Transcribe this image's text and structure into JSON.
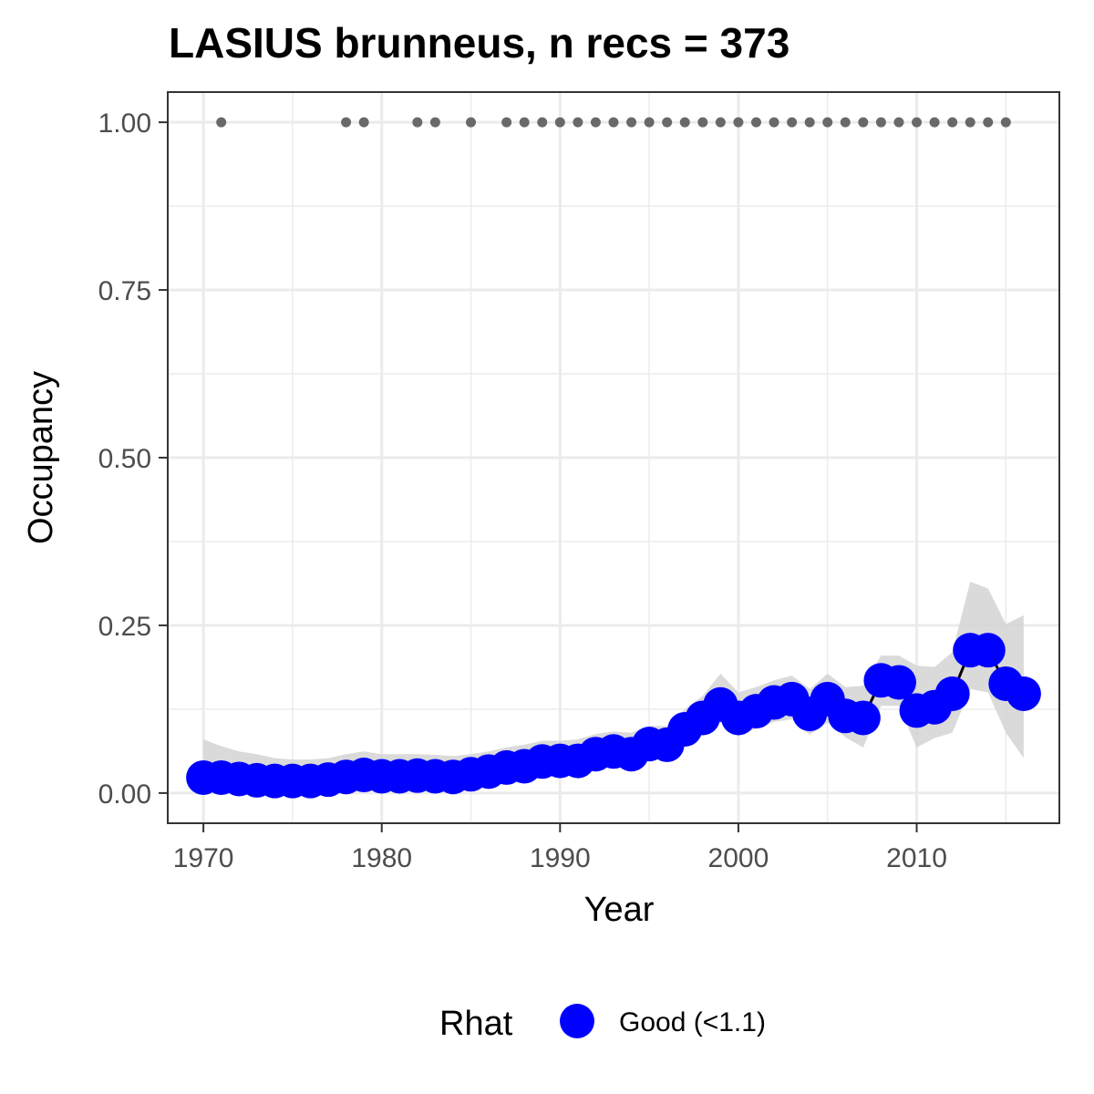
{
  "chart_data": {
    "type": "line",
    "title": "LASIUS brunneus, n recs = 373",
    "xlabel": "Year",
    "ylabel": "Occupancy",
    "xlim": [
      1968,
      2018
    ],
    "ylim": [
      -0.045,
      1.045
    ],
    "x_ticks": [
      1970,
      1980,
      1990,
      2000,
      2010
    ],
    "x_tick_labels": [
      "1970",
      "1980",
      "1990",
      "2000",
      "2010"
    ],
    "y_ticks": [
      0,
      0.25,
      0.5,
      0.75,
      1
    ],
    "y_tick_labels": [
      "0.00",
      "0.25",
      "0.50",
      "0.75",
      "1.00"
    ],
    "grid": true,
    "series": [
      {
        "name": "Good (<1.1)",
        "color": "#0000ff",
        "x": [
          1970,
          1971,
          1972,
          1973,
          1974,
          1975,
          1976,
          1977,
          1978,
          1979,
          1980,
          1981,
          1982,
          1983,
          1984,
          1985,
          1986,
          1987,
          1988,
          1989,
          1990,
          1991,
          1992,
          1993,
          1994,
          1995,
          1996,
          1997,
          1998,
          1999,
          2000,
          2001,
          2002,
          2003,
          2004,
          2005,
          2006,
          2007,
          2008,
          2009,
          2010,
          2011,
          2012,
          2013,
          2014,
          2015,
          2016
        ],
        "y": [
          0.023,
          0.023,
          0.021,
          0.019,
          0.018,
          0.018,
          0.018,
          0.02,
          0.024,
          0.027,
          0.025,
          0.025,
          0.026,
          0.025,
          0.024,
          0.028,
          0.032,
          0.038,
          0.04,
          0.047,
          0.048,
          0.048,
          0.058,
          0.062,
          0.058,
          0.073,
          0.072,
          0.095,
          0.112,
          0.132,
          0.112,
          0.122,
          0.135,
          0.14,
          0.118,
          0.14,
          0.115,
          0.112,
          0.168,
          0.165,
          0.123,
          0.128,
          0.148,
          0.213,
          0.213,
          0.163,
          0.148
        ],
        "lower": [
          0.0,
          0.005,
          0.006,
          0.006,
          0.005,
          0.005,
          0.005,
          0.006,
          0.01,
          0.012,
          0.011,
          0.011,
          0.011,
          0.011,
          0.011,
          0.014,
          0.018,
          0.022,
          0.025,
          0.03,
          0.032,
          0.032,
          0.04,
          0.044,
          0.04,
          0.054,
          0.053,
          0.072,
          0.088,
          0.105,
          0.085,
          0.096,
          0.106,
          0.11,
          0.087,
          0.105,
          0.083,
          0.068,
          0.13,
          0.13,
          0.068,
          0.082,
          0.09,
          0.155,
          0.15,
          0.09,
          0.052
        ],
        "upper": [
          0.08,
          0.07,
          0.062,
          0.058,
          0.052,
          0.05,
          0.05,
          0.052,
          0.058,
          0.062,
          0.058,
          0.058,
          0.058,
          0.057,
          0.055,
          0.058,
          0.062,
          0.068,
          0.072,
          0.078,
          0.078,
          0.08,
          0.088,
          0.092,
          0.09,
          0.1,
          0.1,
          0.125,
          0.145,
          0.178,
          0.15,
          0.158,
          0.168,
          0.175,
          0.155,
          0.178,
          0.158,
          0.16,
          0.205,
          0.205,
          0.19,
          0.188,
          0.21,
          0.315,
          0.305,
          0.252,
          0.265
        ]
      }
    ],
    "records": {
      "x": [
        1971,
        1978,
        1979,
        1982,
        1983,
        1985,
        1987,
        1988,
        1989,
        1990,
        1991,
        1992,
        1993,
        1994,
        1995,
        1996,
        1997,
        1998,
        1999,
        2000,
        2001,
        2002,
        2003,
        2004,
        2005,
        2006,
        2007,
        2008,
        2009,
        2010,
        2011,
        2012,
        2013,
        2014,
        2015
      ],
      "y": 1.0,
      "color": "#696969"
    },
    "legend": {
      "title": "Rhat",
      "entries": [
        "Good (<1.1)"
      ],
      "placement": "bottom"
    },
    "colors": {
      "points": "#0000ff",
      "line": "#000000",
      "ribbon": "#d3d3d3",
      "records": "#696969",
      "grid": "#ebebeb",
      "panel_border": "#333333"
    }
  }
}
